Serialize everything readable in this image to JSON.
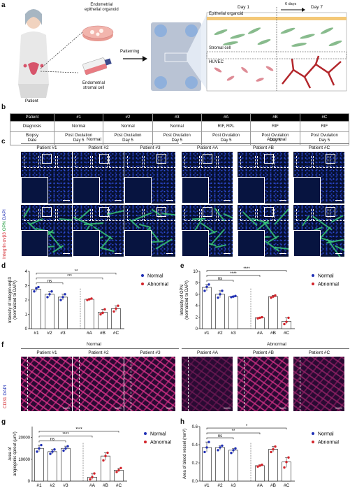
{
  "labels": {
    "a": "a",
    "b": "b",
    "c": "c",
    "d": "d",
    "e": "e",
    "f": "f",
    "g": "g",
    "h": "h"
  },
  "panel_a": {
    "patient": "Patient",
    "organoid": "Endometrial\nepithelial organoid",
    "stromal": "Endometrial\nstromal cell",
    "patterning": "Patterning",
    "day1": "Day 1",
    "days6": "6 days",
    "day7": "Day 7",
    "epithelial": "Epithelial organoid",
    "stromal_cell": "Stromal cell",
    "huvec": "HUVEC"
  },
  "table": {
    "headers": [
      "Patient",
      "#1",
      "#2",
      "#3",
      "#A",
      "#B",
      "#C"
    ],
    "rows": [
      [
        "Diagnosis",
        "Normal",
        "Normal",
        "Normal",
        "RIF, RPL",
        "RIF",
        "RIF"
      ],
      [
        "Biopsy\nDate",
        "Post Ovulation\nDay 5",
        "Post Ovulation\nDay 5",
        "Post Ovulation\nDay 5",
        "Post Ovulation\nDay 5",
        "Post Ovulation\nDay 5",
        "Post Ovulation\nDay 5"
      ]
    ]
  },
  "panel_c": {
    "normal": "Normal",
    "abnormal": "Abnormal",
    "patients": [
      "Patient #1",
      "Patient #2",
      "Patient #3",
      "Patient #A",
      "Patient #B",
      "Patient #C"
    ],
    "side": [
      "Integrin αvβ3",
      "OPN",
      "DAPI"
    ]
  },
  "panel_f": {
    "normal": "Normal",
    "abnormal": "Abnormal",
    "side": [
      "CD31",
      "DAPI"
    ],
    "patients": [
      "Patient #1",
      "Patient #2",
      "Patient #3",
      "Patient #A",
      "Patient #B",
      "Patient #C"
    ]
  },
  "legend": {
    "normal": "Normal",
    "abnormal": "Abnormal",
    "normal_color": "#1f2fb5",
    "abnormal_color": "#d2232a"
  },
  "chart_data": [
    {
      "id": "d",
      "type": "bar",
      "ylabel": "Intensity of Integrin αvβ3\n(normalized to DAPI)",
      "categories": [
        "#1",
        "#2",
        "#3",
        "#A",
        "#B",
        "#C"
      ],
      "values": [
        2.75,
        2.4,
        2.2,
        2.05,
        1.15,
        1.4
      ],
      "ylim": [
        0,
        4
      ],
      "yticks": [
        0,
        1,
        2,
        3,
        4
      ],
      "points": [
        [
          2.6,
          2.8,
          2.9
        ],
        [
          2.2,
          2.4,
          2.6
        ],
        [
          2.0,
          2.2,
          2.4
        ],
        [
          2.0,
          2.05,
          2.1
        ],
        [
          1.0,
          1.1,
          1.35
        ],
        [
          1.2,
          1.4,
          1.6
        ]
      ],
      "sig": [
        {
          "a": 0,
          "b": 2,
          "label": "ns"
        },
        {
          "a": 0,
          "b": 4,
          "label": "***"
        },
        {
          "a": 0,
          "b": 5,
          "label": "**"
        }
      ]
    },
    {
      "id": "e",
      "type": "bar",
      "ylabel": "Intensity of OPN\n(normalized to DAPI)",
      "categories": [
        "#1",
        "#2",
        "#3",
        "#A",
        "#B",
        "#C"
      ],
      "values": [
        7.2,
        6.0,
        5.6,
        1.9,
        5.6,
        1.3
      ],
      "ylim": [
        0,
        10
      ],
      "yticks": [
        0,
        2,
        4,
        6,
        8,
        10
      ],
      "points": [
        [
          6.6,
          7.3,
          7.7
        ],
        [
          5.4,
          6.0,
          6.6
        ],
        [
          5.5,
          5.6,
          5.7
        ],
        [
          1.8,
          1.9,
          2.0
        ],
        [
          5.4,
          5.6,
          5.8
        ],
        [
          0.8,
          1.2,
          1.9
        ]
      ],
      "sig": [
        {
          "a": 0,
          "b": 2,
          "label": "ns"
        },
        {
          "a": 0,
          "b": 3,
          "label": "****"
        },
        {
          "a": 0,
          "b": 5,
          "label": "****"
        }
      ]
    },
    {
      "id": "g",
      "type": "bar",
      "ylabel": "Area of\nangiogenic sprout (μm²)",
      "categories": [
        "#1",
        "#2",
        "#3",
        "#A",
        "#B",
        "#C"
      ],
      "values": [
        15000,
        13500,
        15000,
        1800,
        11500,
        5000
      ],
      "ylim": [
        0,
        25000
      ],
      "yticks": [
        0,
        10000,
        20000
      ],
      "points": [
        [
          13500,
          15000,
          16500
        ],
        [
          12500,
          13500,
          14500
        ],
        [
          14000,
          15000,
          16000
        ],
        [
          800,
          1800,
          3500
        ],
        [
          9500,
          11500,
          13000
        ],
        [
          4200,
          5000,
          6000
        ]
      ],
      "sig": [
        {
          "a": 0,
          "b": 2,
          "label": "ns"
        },
        {
          "a": 0,
          "b": 3,
          "label": "****"
        },
        {
          "a": 0,
          "b": 5,
          "label": "****"
        }
      ]
    },
    {
      "id": "h",
      "type": "bar",
      "ylabel": "Area of blood vessel (mm²)",
      "categories": [
        "#1",
        "#2",
        "#3",
        "#A",
        "#B",
        "#C"
      ],
      "values": [
        0.37,
        0.37,
        0.34,
        0.17,
        0.35,
        0.21
      ],
      "ylim": [
        0,
        0.6
      ],
      "yticks": [
        0.0,
        0.2,
        0.4,
        0.6
      ],
      "points": [
        [
          0.32,
          0.37,
          0.43
        ],
        [
          0.34,
          0.37,
          0.39
        ],
        [
          0.31,
          0.34,
          0.36
        ],
        [
          0.16,
          0.17,
          0.18
        ],
        [
          0.32,
          0.35,
          0.38
        ],
        [
          0.15,
          0.21,
          0.26
        ]
      ],
      "sig": [
        {
          "a": 0,
          "b": 2,
          "label": "ns"
        },
        {
          "a": 0,
          "b": 3,
          "label": "**"
        },
        {
          "a": 0,
          "b": 5,
          "label": "*"
        }
      ]
    }
  ]
}
